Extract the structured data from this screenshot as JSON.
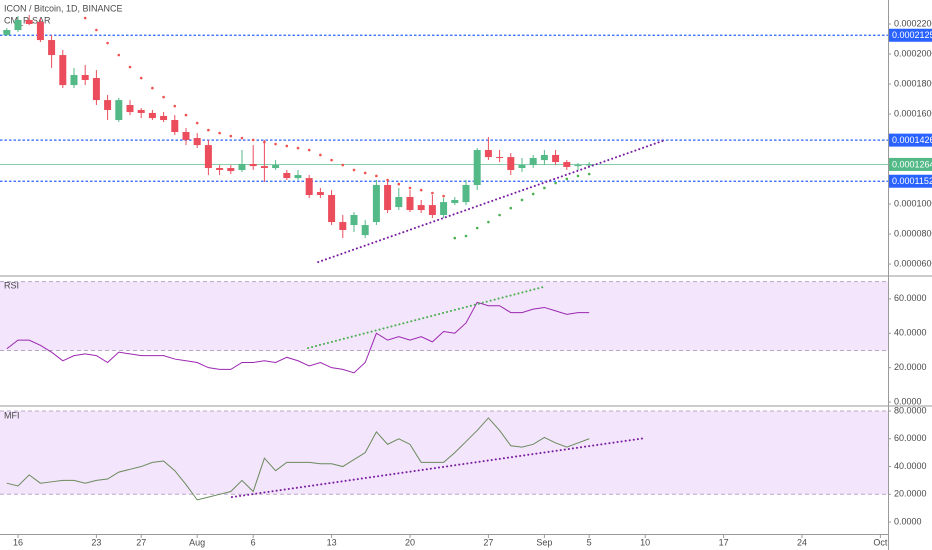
{
  "chart_data": [
    {
      "type": "candlestick",
      "title": "ICON / Bitcoin, 1D, BINANCE",
      "indicator": "CM_P-SAR",
      "up_color": "#53b987",
      "down_color": "#eb4d5c",
      "xlim": [
        -1.607,
        77.68
      ],
      "ylim": [
        5.27e-05,
        0.000236
      ],
      "yticks": [
        {
          "value": 0.00022,
          "label": "0.0002200"
        },
        {
          "value": 0.0002,
          "label": "0.0002000"
        },
        {
          "value": 0.00018,
          "label": "0.0001800"
        },
        {
          "value": 0.00016,
          "label": "0.0001600"
        },
        {
          "value": 0.0001,
          "label": "0.0001000"
        },
        {
          "value": 8e-05,
          "label": "0.0000800"
        },
        {
          "value": 6e-05,
          "label": "0.0000600"
        }
      ],
      "x": [
        -1,
        0,
        1,
        2,
        3,
        4,
        5,
        6,
        7,
        8,
        9,
        10,
        11,
        12,
        13,
        14,
        15,
        16,
        17,
        18,
        19,
        20,
        21,
        22,
        23,
        24,
        25,
        26,
        27,
        28,
        29,
        30,
        31,
        32,
        33,
        34,
        35,
        36,
        37,
        38,
        39,
        40,
        41,
        42,
        43,
        44,
        45,
        46,
        47,
        48,
        49,
        50,
        51
      ],
      "open": [
        0.0002127,
        0.000216,
        0.0002227,
        0.0002213,
        0.0002093,
        0.0001993,
        0.0001793,
        0.000186,
        0.000184,
        0.0001693,
        0.000156,
        0.000166,
        0.0001627,
        0.0001607,
        0.0001587,
        0.000156,
        0.000148,
        0.000144,
        0.0001393,
        0.000124,
        0.000124,
        0.0001227,
        0.0001267,
        0.0001253,
        0.000124,
        0.0001207,
        0.0001173,
        0.0001173,
        0.000108,
        0.000106,
        8.8e-05,
        8.6e-05,
        7.93e-05,
        8.8e-05,
        0.0001127,
        9.8e-05,
        0.0001047,
        9.93e-05,
        9.93e-05,
        9.27e-05,
        0.0001007,
        0.0001013,
        0.0001127,
        0.000136,
        0.0001313,
        0.0001313,
        0.000124,
        0.000126,
        0.0001293,
        0.0001327,
        0.000128,
        0.0001253,
        0.000126
      ],
      "high": [
        0.0002173,
        0.0002253,
        0.000226,
        0.000224,
        0.0002127,
        0.0002027,
        0.0001907,
        0.0001927,
        0.0001893,
        0.0001727,
        0.0001707,
        0.0001693,
        0.000164,
        0.0001627,
        0.0001613,
        0.0001593,
        0.0001507,
        0.0001473,
        0.0001427,
        0.000126,
        0.000126,
        0.000136,
        0.0001393,
        0.0001427,
        0.0001293,
        0.0001227,
        0.0001227,
        0.0001193,
        0.0001107,
        0.0001093,
        9.27e-05,
        9.47e-05,
        8.93e-05,
        0.000116,
        0.000116,
        0.0001107,
        0.0001093,
        0.0001027,
        0.000106,
        0.000104,
        0.0001047,
        0.000116,
        0.0001373,
        0.0001447,
        0.000136,
        0.000134,
        0.0001307,
        0.0001327,
        0.000136,
        0.000136,
        0.0001293,
        0.0001273,
        0.000128
      ],
      "low": [
        0.000212,
        0.0002147,
        0.0002193,
        0.000208,
        0.0001907,
        0.0001773,
        0.0001773,
        0.0001793,
        0.000166,
        0.000156,
        0.0001547,
        0.0001593,
        0.0001573,
        0.000156,
        0.0001547,
        0.000146,
        0.0001393,
        0.0001373,
        0.0001193,
        0.0001193,
        0.00012,
        0.0001213,
        0.0001227,
        0.0001147,
        0.0001227,
        0.000116,
        0.000116,
        0.000104,
        0.000104,
        8.6e-05,
        7.73e-05,
        8.13e-05,
        7.73e-05,
        8.6e-05,
        9.4e-05,
        9.6e-05,
        9.47e-05,
        9.4e-05,
        9.07e-05,
        9.07e-05,
        9.93e-05,
        9.93e-05,
        0.0001093,
        0.0001293,
        0.000128,
        0.0001193,
        0.0001213,
        0.000124,
        0.000126,
        0.000126,
        0.0001227,
        0.0001227,
        0.0001247
      ],
      "close": [
        0.000216,
        0.0002227,
        0.00022,
        0.0002093,
        0.0001993,
        0.0001793,
        0.000186,
        0.0001827,
        0.0001693,
        0.0001627,
        0.0001693,
        0.0001613,
        0.0001607,
        0.0001573,
        0.000156,
        0.000148,
        0.0001427,
        0.0001393,
        0.000124,
        0.0001227,
        0.000122,
        0.0001267,
        0.0001253,
        0.000124,
        0.000126,
        0.0001173,
        0.0001193,
        0.000106,
        0.000106,
        8.8e-05,
        8.27e-05,
        9.27e-05,
        8.6e-05,
        0.0001127,
        9.6e-05,
        0.0001047,
        9.6e-05,
        9.6e-05,
        9.27e-05,
        0.0001013,
        0.0001027,
        0.0001127,
        0.000136,
        0.0001313,
        0.0001307,
        0.0001227,
        0.000126,
        0.0001307,
        0.0001327,
        0.000128,
        0.0001247,
        0.000126,
        0.0001264
      ],
      "sar": [
        {
          "color": "#ef5350",
          "x": [
            6,
            7,
            8,
            9,
            10,
            11,
            12,
            13,
            14,
            15,
            16,
            17,
            18,
            19,
            20,
            21,
            22,
            23,
            24,
            25,
            26,
            27,
            28,
            29,
            30,
            31,
            32,
            33,
            34,
            35,
            36,
            37,
            38
          ],
          "values": [
            0.000224,
            0.000216,
            0.0002073,
            0.0001993,
            0.0001913,
            0.000184,
            0.0001773,
            0.0001713,
            0.0001653,
            0.0001593,
            0.000154,
            0.0001493,
            0.0001473,
            0.0001453,
            0.000144,
            0.0001427,
            0.0001413,
            0.00014,
            0.0001387,
            0.0001373,
            0.000136,
            0.0001327,
            0.0001293,
            0.000126,
            0.0001227,
            0.0001207,
            0.0001187,
            0.000116,
            0.0001133,
            0.0001107,
            0.0001093,
            0.0001073,
            0.0001053
          ]
        },
        {
          "color": "#4caf50",
          "x": [
            39,
            40,
            41,
            42,
            43,
            44,
            45,
            46,
            47,
            48,
            49,
            50,
            51
          ],
          "values": [
            7.73e-05,
            7.87e-05,
            8.4e-05,
            8.8e-05,
            9.27e-05,
            9.73e-05,
            0.0001027,
            0.0001067,
            0.0001107,
            0.000114,
            0.0001167,
            0.0001187,
            0.00012
          ]
        }
      ],
      "price_lines": [
        {
          "value": 0.0002125,
          "color": "#2962ff"
        },
        {
          "value": 0.0001426,
          "color": "#2962ff"
        },
        {
          "value": 0.0001152,
          "color": "#2962ff"
        }
      ],
      "last_price": {
        "value": 0.0001264,
        "color": "#53b987"
      },
      "trendlines": [
        {
          "color": "#7b1fa2",
          "x": [
            26.8,
            57.8
          ],
          "y": [
            6.13e-05,
            0.0001427
          ]
        }
      ]
    },
    {
      "type": "line",
      "title": "RSI",
      "color": "#9c27b0",
      "band": [
        30,
        70
      ],
      "band_color": "#f3e5fb",
      "xlim": [
        -1.607,
        77.68
      ],
      "ylim": [
        -1.7,
        72.7
      ],
      "yticks": [
        {
          "value": 60,
          "label": "60.0000"
        },
        {
          "value": 40,
          "label": "40.0000"
        },
        {
          "value": 20,
          "label": "20.0000"
        },
        {
          "value": 0,
          "label": "0.0000"
        }
      ],
      "x": [
        -1,
        0,
        1,
        2,
        3,
        4,
        5,
        6,
        7,
        8,
        9,
        10,
        11,
        12,
        13,
        14,
        15,
        16,
        17,
        18,
        19,
        20,
        21,
        22,
        23,
        24,
        25,
        26,
        27,
        28,
        29,
        30,
        31,
        32,
        33,
        34,
        35,
        36,
        37,
        38,
        39,
        40,
        41,
        42,
        43,
        44,
        45,
        46,
        47,
        48,
        49,
        50,
        51
      ],
      "values": [
        31,
        36,
        36,
        33,
        29,
        24,
        27,
        28,
        27,
        23,
        29,
        28,
        27,
        27,
        27,
        25,
        24,
        23,
        20,
        19,
        19,
        23,
        23,
        24,
        23,
        26,
        24,
        21,
        23,
        20,
        19,
        17,
        23,
        40,
        36,
        38,
        36,
        38,
        35,
        41,
        40,
        46,
        58,
        56,
        56,
        52,
        52,
        54,
        55,
        53,
        51,
        52,
        52
      ],
      "trendlines": [
        {
          "color": "#4caf50",
          "x": [
            25.9,
            46.9
          ],
          "y": [
            31.4,
            66.9
          ]
        }
      ]
    },
    {
      "type": "line",
      "title": "MFI",
      "color": "#6b8a5e",
      "band": [
        20,
        80
      ],
      "band_color": "#f3e5fb",
      "xlim": [
        -1.607,
        77.68
      ],
      "ylim": [
        -8.6,
        82.9
      ],
      "yticks": [
        {
          "value": 80,
          "label": "80.0000"
        },
        {
          "value": 60,
          "label": "60.0000"
        },
        {
          "value": 40,
          "label": "40.0000"
        },
        {
          "value": 20,
          "label": "20.0000"
        },
        {
          "value": 0,
          "label": "0.0000"
        }
      ],
      "xticks": [
        {
          "value": 0,
          "label": "16"
        },
        {
          "value": 7,
          "label": "23"
        },
        {
          "value": 11,
          "label": "27"
        },
        {
          "value": 16,
          "label": "Aug"
        },
        {
          "value": 21,
          "label": "6"
        },
        {
          "value": 28,
          "label": "13"
        },
        {
          "value": 35,
          "label": "20"
        },
        {
          "value": 42,
          "label": "27"
        },
        {
          "value": 47,
          "label": "Sep"
        },
        {
          "value": 51,
          "label": "5"
        },
        {
          "value": 56,
          "label": "10"
        },
        {
          "value": 63,
          "label": "17"
        },
        {
          "value": 70,
          "label": "24"
        },
        {
          "value": 77,
          "label": "Oct"
        }
      ],
      "x": [
        -1,
        0,
        1,
        2,
        3,
        4,
        5,
        6,
        7,
        8,
        9,
        10,
        11,
        12,
        13,
        14,
        15,
        16,
        17,
        18,
        19,
        20,
        21,
        22,
        23,
        24,
        25,
        26,
        27,
        28,
        29,
        30,
        31,
        32,
        33,
        34,
        35,
        36,
        37,
        38,
        39,
        40,
        41,
        42,
        43,
        44,
        45,
        46,
        47,
        48,
        49,
        50,
        51
      ],
      "values": [
        28,
        26,
        34,
        28,
        29,
        30,
        30,
        28,
        30,
        31,
        36,
        38,
        40,
        43,
        44,
        37,
        27,
        16,
        18,
        20,
        22,
        30,
        22,
        46,
        37,
        43,
        43,
        43,
        42,
        42,
        40,
        45,
        50,
        65,
        56,
        60,
        56,
        43,
        43,
        43,
        50,
        58,
        66,
        75,
        66,
        55,
        54,
        56,
        61,
        57,
        54,
        57,
        60
      ],
      "trendlines": [
        {
          "color": "#7b1fa2",
          "x": [
            19.1,
            56.0
          ],
          "y": [
            18.0,
            60.5
          ]
        }
      ]
    }
  ]
}
